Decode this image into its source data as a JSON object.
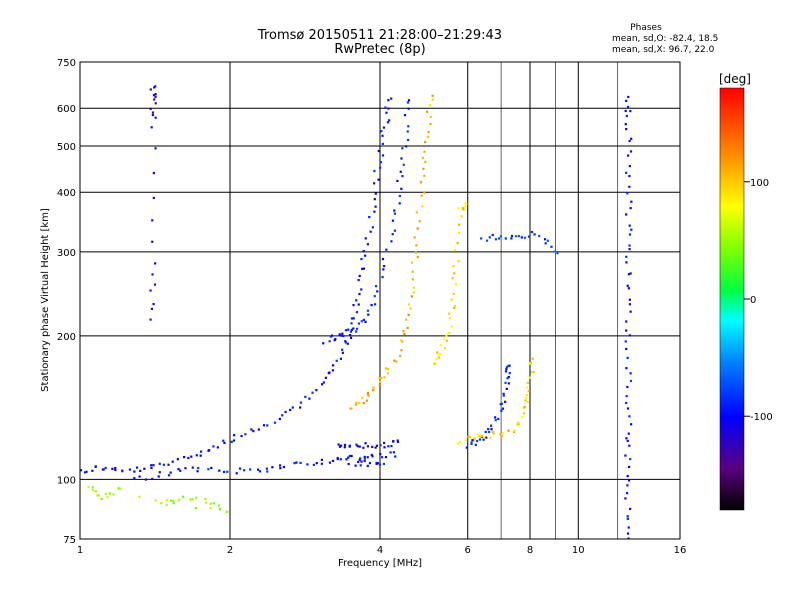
{
  "chart_data": {
    "type": "scatter",
    "title": "Tromsø 20150511 21:28:00–21:29:43",
    "subtitle": "RwPretec (8p)",
    "xlabel": "Frequency [MHz]",
    "ylabel": "Stationary phase Virtual Height [km]",
    "x_scale": "log",
    "y_scale": "log",
    "xlim": [
      1,
      16
    ],
    "ylim": [
      75,
      750
    ],
    "x_ticks": [
      1,
      2,
      4,
      6,
      8,
      10,
      16
    ],
    "x_minor_lines": [
      6,
      7,
      8,
      9,
      10,
      12
    ],
    "y_ticks": [
      75,
      100,
      200,
      300,
      400,
      500,
      600,
      750
    ],
    "grid": true,
    "phases_box": {
      "title": "Phases",
      "line1": "mean, sd,O: -82.4, 18.5",
      "line2": "mean, sd,X:  96.7, 22.0"
    },
    "colorbar": {
      "label": "[deg]",
      "range": [
        -180,
        180
      ],
      "ticks": [
        -100,
        0,
        100
      ]
    },
    "traces": [
      {
        "name": "",
        "phase": -100,
        "points": [
          [
            1.0,
            104
          ],
          [
            1.1,
            106
          ],
          [
            1.2,
            104
          ],
          [
            1.35,
            105
          ],
          [
            1.5,
            108
          ],
          [
            1.7,
            113
          ],
          [
            1.9,
            118
          ],
          [
            2.1,
            124
          ],
          [
            2.4,
            130
          ],
          [
            2.7,
            140
          ],
          [
            3.0,
            155
          ],
          [
            3.2,
            170
          ],
          [
            3.4,
            190
          ],
          [
            3.5,
            210
          ],
          [
            3.6,
            240
          ],
          [
            3.7,
            280
          ],
          [
            3.8,
            330
          ],
          [
            3.9,
            400
          ],
          [
            4.0,
            480
          ],
          [
            4.1,
            560
          ],
          [
            4.2,
            630
          ]
        ]
      },
      {
        "name": "",
        "phase": -95,
        "points": [
          [
            1.3,
            100
          ],
          [
            1.5,
            103
          ],
          [
            1.7,
            105
          ],
          [
            2.0,
            104
          ],
          [
            2.3,
            105
          ],
          [
            2.6,
            107
          ],
          [
            3.0,
            109
          ],
          [
            3.3,
            110
          ],
          [
            3.6,
            111
          ],
          [
            3.9,
            112
          ],
          [
            4.3,
            113
          ]
        ]
      },
      {
        "name": "",
        "phase": -95,
        "points": [
          [
            3.1,
            195
          ],
          [
            3.3,
            200
          ],
          [
            3.5,
            205
          ],
          [
            3.7,
            215
          ],
          [
            3.9,
            240
          ],
          [
            4.1,
            290
          ],
          [
            4.3,
            360
          ],
          [
            4.4,
            430
          ],
          [
            4.5,
            520
          ],
          [
            4.6,
            630
          ]
        ]
      },
      {
        "name": "",
        "phase": -100,
        "points": [
          [
            3.3,
            118
          ],
          [
            3.5,
            117
          ],
          [
            3.8,
            118
          ],
          [
            4.1,
            118
          ],
          [
            4.4,
            119
          ]
        ]
      },
      {
        "name": "",
        "phase": -100,
        "points": [
          [
            3.5,
            108
          ],
          [
            3.8,
            108
          ],
          [
            4.1,
            108
          ]
        ]
      },
      {
        "name": "",
        "phase": 110,
        "points": [
          [
            3.5,
            140
          ],
          [
            3.7,
            147
          ],
          [
            3.9,
            155
          ],
          [
            4.1,
            165
          ],
          [
            4.3,
            180
          ],
          [
            4.5,
            205
          ],
          [
            4.6,
            240
          ],
          [
            4.7,
            290
          ],
          [
            4.8,
            360
          ],
          [
            4.9,
            450
          ],
          [
            5.0,
            540
          ],
          [
            5.05,
            640
          ]
        ]
      },
      {
        "name": "",
        "phase": 95,
        "points": [
          [
            5.1,
            175
          ],
          [
            5.3,
            185
          ],
          [
            5.5,
            205
          ],
          [
            5.6,
            240
          ],
          [
            5.7,
            290
          ],
          [
            5.8,
            370
          ],
          [
            6.0,
            380
          ]
        ]
      },
      {
        "name": "",
        "phase": -90,
        "points": [
          [
            6.0,
            118
          ],
          [
            6.3,
            120
          ],
          [
            6.6,
            125
          ],
          [
            6.9,
            135
          ],
          [
            7.1,
            150
          ],
          [
            7.2,
            165
          ],
          [
            7.3,
            175
          ]
        ]
      },
      {
        "name": "",
        "phase": 95,
        "points": [
          [
            5.8,
            120
          ],
          [
            6.2,
            122
          ],
          [
            6.6,
            124
          ],
          [
            7.2,
            125
          ],
          [
            7.6,
            130
          ],
          [
            7.9,
            145
          ],
          [
            8.0,
            160
          ],
          [
            8.05,
            180
          ]
        ]
      },
      {
        "name": "",
        "phase": -80,
        "points": [
          [
            6.4,
            320
          ],
          [
            7.0,
            322
          ],
          [
            7.6,
            325
          ],
          [
            8.4,
            326
          ],
          [
            9.0,
            300
          ]
        ]
      },
      {
        "name": "",
        "phase": -100,
        "points": [
          [
            12.6,
            75
          ],
          [
            12.6,
            90
          ],
          [
            12.6,
            110
          ],
          [
            12.6,
            130
          ],
          [
            12.6,
            160
          ],
          [
            12.6,
            200
          ],
          [
            12.6,
            250
          ],
          [
            12.6,
            300
          ],
          [
            12.6,
            370
          ],
          [
            12.6,
            460
          ],
          [
            12.6,
            560
          ],
          [
            12.6,
            640
          ]
        ]
      },
      {
        "name": "",
        "phase": -110,
        "points": [
          [
            1.4,
            215
          ],
          [
            1.4,
            280
          ],
          [
            1.4,
            555
          ],
          [
            1.4,
            630
          ],
          [
            1.4,
            660
          ]
        ]
      },
      {
        "name": "",
        "phase": 50,
        "points": [
          [
            1.45,
            88
          ],
          [
            1.6,
            92
          ],
          [
            1.8,
            90
          ],
          [
            2.0,
            85
          ],
          [
            1.2,
            95
          ],
          [
            1.1,
            92
          ],
          [
            1.05,
            96
          ]
        ]
      }
    ]
  }
}
